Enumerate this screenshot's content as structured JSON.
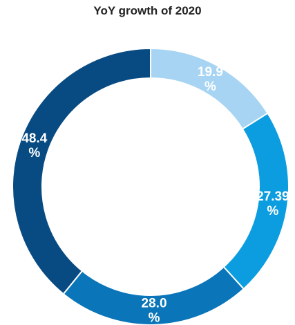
{
  "chart_data": {
    "type": "pie",
    "title": "YoY growth of 2020",
    "categories": [
      "",
      "",
      "",
      ""
    ],
    "values": [
      19.9,
      27.39,
      28.0,
      48.4
    ],
    "labels": [
      "19.9 %",
      "27.39 %",
      "28.0 %",
      "48.4 %"
    ],
    "colors": [
      "#a6d4f2",
      "#0b9de0",
      "#0a75b8",
      "#084b82"
    ],
    "donut": true,
    "legend": "none"
  }
}
